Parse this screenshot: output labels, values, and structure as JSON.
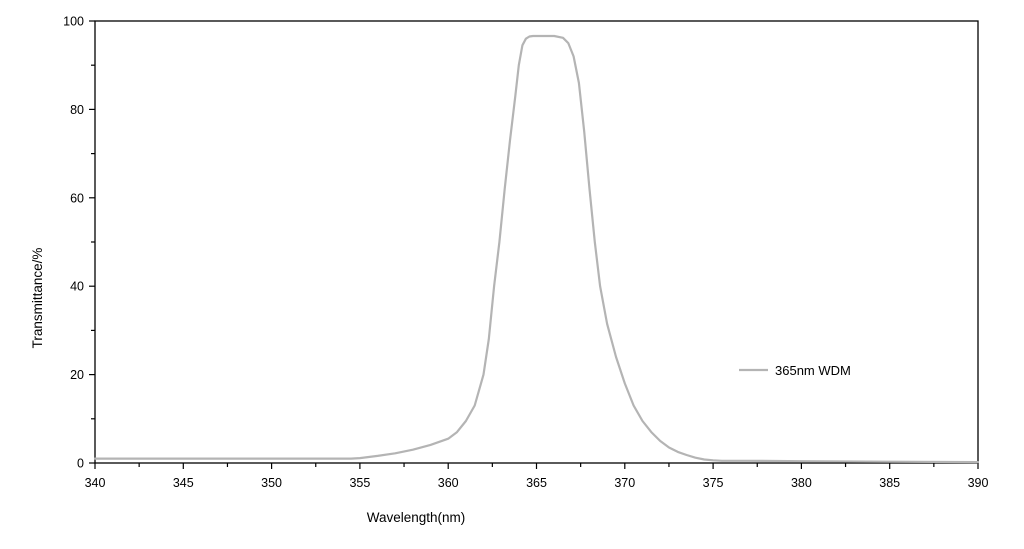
{
  "chart_data": {
    "type": "line",
    "title": "",
    "xlabel": "Wavelength(nm)",
    "ylabel": "Transmittance/%",
    "xlim": [
      340,
      390
    ],
    "ylim": [
      0,
      100
    ],
    "x_ticks": [
      340,
      345,
      350,
      355,
      360,
      365,
      370,
      375,
      380,
      385,
      390
    ],
    "x_tick_labels": [
      "340",
      "345",
      "350",
      "355",
      "360",
      "365",
      "370",
      "375",
      "380",
      "385",
      "390"
    ],
    "y_ticks": [
      0,
      20,
      40,
      60,
      80,
      100
    ],
    "y_tick_labels": [
      "0",
      "20",
      "40",
      "60",
      "80",
      "100"
    ],
    "grid": false,
    "legend_position": "right",
    "series": [
      {
        "name": "365nm WDM",
        "color": "#b4b4b4",
        "x": [
          340,
          345,
          350,
          354.5,
          355,
          356,
          357,
          358,
          359,
          360,
          360.5,
          361,
          361.5,
          362,
          362.3,
          362.6,
          362.9,
          363.2,
          363.5,
          363.8,
          364,
          364.2,
          364.4,
          364.6,
          364.8,
          365,
          365.5,
          366,
          366.5,
          366.8,
          367.1,
          367.4,
          367.7,
          368,
          368.3,
          368.6,
          369,
          369.5,
          370,
          370.5,
          371,
          371.5,
          372,
          372.5,
          373,
          373.5,
          374,
          374.5,
          375,
          375.5,
          377,
          380,
          385,
          390
        ],
        "y": [
          1.0,
          1.0,
          1.0,
          1.0,
          1.1,
          1.6,
          2.2,
          3.0,
          4.1,
          5.5,
          7.0,
          9.5,
          13.0,
          20.0,
          28.0,
          40.0,
          50.0,
          62.0,
          73.0,
          83.0,
          90.0,
          94.5,
          96.0,
          96.5,
          96.6,
          96.6,
          96.6,
          96.6,
          96.2,
          95.0,
          92.0,
          86.0,
          75.0,
          62.0,
          50.0,
          40.0,
          31.5,
          24.0,
          18.0,
          13.0,
          9.5,
          7.0,
          5.0,
          3.5,
          2.5,
          1.8,
          1.2,
          0.8,
          0.6,
          0.5,
          0.5,
          0.4,
          0.3,
          0.2
        ]
      }
    ]
  }
}
